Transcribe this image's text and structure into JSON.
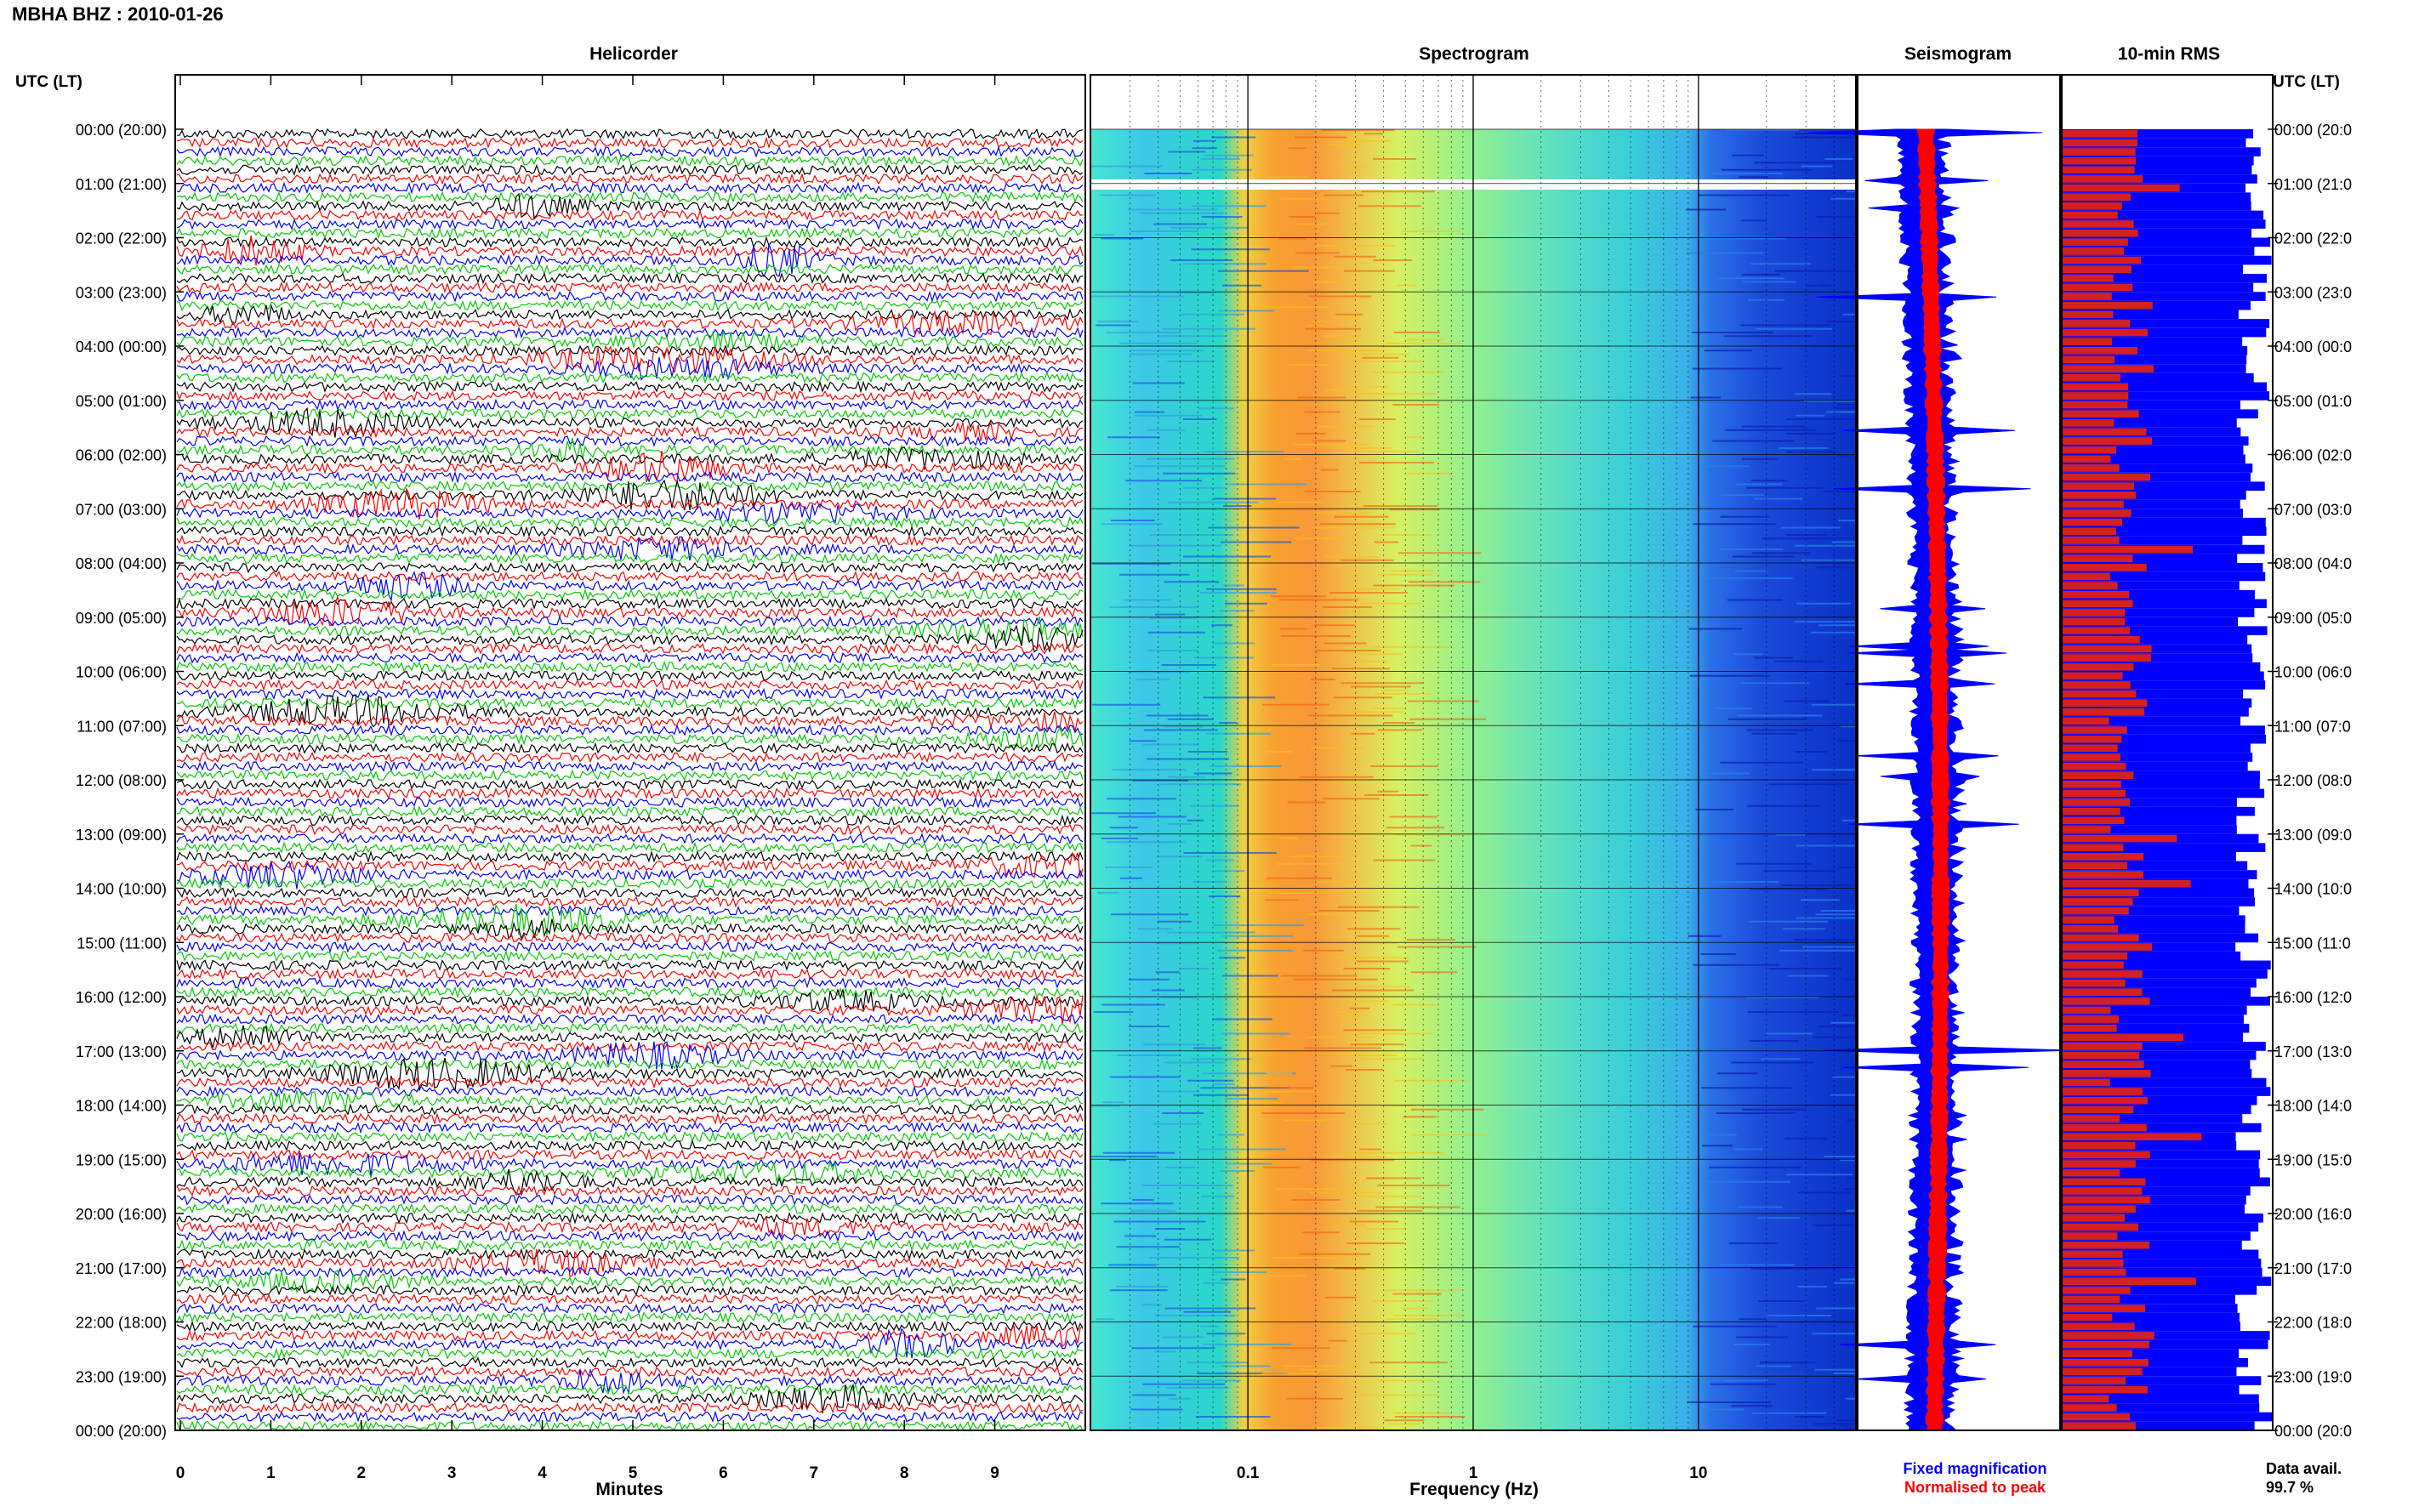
{
  "station_title": "MBHA BHZ : 2010-01-26",
  "time_axis_header_left": "UTC (LT)",
  "time_axis_header_right": "UTC (LT)",
  "panels": {
    "helicorder": "Helicorder",
    "spectrogram": "Spectrogram",
    "seismogram": "Seismogram",
    "rms": "10-min RMS"
  },
  "time_labels": [
    "00:00 (20:00)",
    "01:00 (21:00)",
    "02:00 (22:00)",
    "03:00 (23:00)",
    "04:00 (00:00)",
    "05:00 (01:00)",
    "06:00 (02:00)",
    "07:00 (03:00)",
    "08:00 (04:00)",
    "09:00 (05:00)",
    "10:00 (06:00)",
    "11:00 (07:00)",
    "12:00 (08:00)",
    "13:00 (09:00)",
    "14:00 (10:00)",
    "15:00 (11:00)",
    "16:00 (12:00)",
    "17:00 (13:00)",
    "18:00 (14:00)",
    "19:00 (15:00)",
    "20:00 (16:00)",
    "21:00 (17:00)",
    "22:00 (18:00)",
    "23:00 (19:00)",
    "00:00 (20:00)"
  ],
  "time_labels_right": [
    "00:00 (20:0",
    "01:00 (21:0",
    "02:00 (22:0",
    "03:00 (23:0",
    "04:00 (00:0",
    "05:00 (01:0",
    "06:00 (02:0",
    "07:00 (03:0",
    "08:00 (04:0",
    "09:00 (05:0",
    "10:00 (06:0",
    "11:00 (07:0",
    "12:00 (08:0",
    "13:00 (09:0",
    "14:00 (10:0",
    "15:00 (11:0",
    "16:00 (12:0",
    "17:00 (13:0",
    "18:00 (14:0",
    "19:00 (15:0",
    "20:00 (16:0",
    "21:00 (17:0",
    "22:00 (18:0",
    "23:00 (19:0",
    "00:00 (20:0"
  ],
  "x_minutes_ticks": [
    "0",
    "1",
    "2",
    "3",
    "4",
    "5",
    "6",
    "7",
    "8",
    "9"
  ],
  "x_minutes_label": "Minutes",
  "x_freq_ticks": [
    "0.1",
    "1",
    "10"
  ],
  "x_freq_label": "Frequency (Hz)",
  "legend": {
    "fixed": "Fixed magnification",
    "normalised": "Normalised to peak"
  },
  "data_avail": {
    "label": "Data avail.",
    "value": "99.7 %"
  },
  "colors": {
    "trace_cycle": [
      "#000000",
      "#ff0000",
      "#0000ff",
      "#00cc00"
    ],
    "fixed_magnification": "#0000ff",
    "normalised_to_peak": "#ff0000",
    "rms_fixed": "#0000ff",
    "rms_normalised": "#d42020"
  },
  "chart_data": [
    {
      "type": "line",
      "panel": "helicorder",
      "xlabel": "Minutes",
      "xlim": [
        0,
        10
      ],
      "rows_per_hour": 6,
      "row_color_cycle": [
        "black",
        "red",
        "blue",
        "green"
      ]
    },
    {
      "type": "heatmap",
      "panel": "spectrogram",
      "xlabel": "Frequency (Hz)",
      "x_scale": "log",
      "xlim": [
        0.02,
        50
      ],
      "x_ticks": [
        0.1,
        1,
        10
      ],
      "dominant_band_hz": [
        0.14,
        0.5
      ],
      "colormap": "jet"
    },
    {
      "type": "line",
      "panel": "seismogram",
      "series": [
        {
          "name": "Fixed magnification",
          "color": "#0000ff"
        },
        {
          "name": "Normalised to peak",
          "color": "#ff0000"
        }
      ]
    },
    {
      "type": "bar",
      "panel": "rms",
      "series": [
        {
          "name": "Fixed magnification",
          "color": "#0000ff"
        },
        {
          "name": "Normalised to peak",
          "color": "#d42020"
        }
      ],
      "data_availability_percent": 99.7
    }
  ]
}
